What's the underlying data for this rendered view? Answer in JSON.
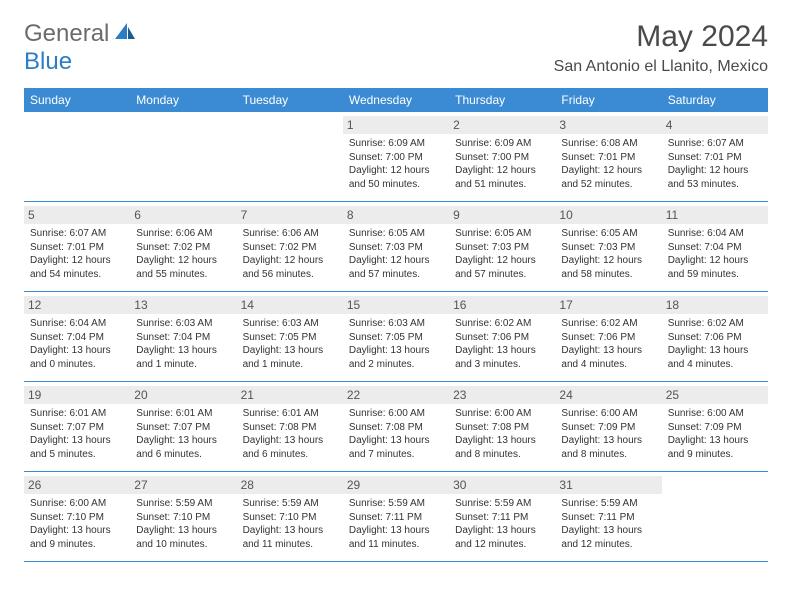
{
  "logo": {
    "text_gray": "General",
    "text_blue": "Blue"
  },
  "header": {
    "month_title": "May 2024",
    "location": "San Antonio el Llanito, Mexico"
  },
  "colors": {
    "header_bg": "#3b8bd4",
    "header_text": "#ffffff",
    "date_bg": "#ececec",
    "border": "#3b8bd4",
    "logo_gray": "#6b6b6b",
    "logo_blue": "#2b7dc4"
  },
  "day_names": [
    "Sunday",
    "Monday",
    "Tuesday",
    "Wednesday",
    "Thursday",
    "Friday",
    "Saturday"
  ],
  "weeks": [
    [
      null,
      null,
      null,
      {
        "n": "1",
        "sr": "Sunrise: 6:09 AM",
        "ss": "Sunset: 7:00 PM",
        "d1": "Daylight: 12 hours",
        "d2": "and 50 minutes."
      },
      {
        "n": "2",
        "sr": "Sunrise: 6:09 AM",
        "ss": "Sunset: 7:00 PM",
        "d1": "Daylight: 12 hours",
        "d2": "and 51 minutes."
      },
      {
        "n": "3",
        "sr": "Sunrise: 6:08 AM",
        "ss": "Sunset: 7:01 PM",
        "d1": "Daylight: 12 hours",
        "d2": "and 52 minutes."
      },
      {
        "n": "4",
        "sr": "Sunrise: 6:07 AM",
        "ss": "Sunset: 7:01 PM",
        "d1": "Daylight: 12 hours",
        "d2": "and 53 minutes."
      }
    ],
    [
      {
        "n": "5",
        "sr": "Sunrise: 6:07 AM",
        "ss": "Sunset: 7:01 PM",
        "d1": "Daylight: 12 hours",
        "d2": "and 54 minutes."
      },
      {
        "n": "6",
        "sr": "Sunrise: 6:06 AM",
        "ss": "Sunset: 7:02 PM",
        "d1": "Daylight: 12 hours",
        "d2": "and 55 minutes."
      },
      {
        "n": "7",
        "sr": "Sunrise: 6:06 AM",
        "ss": "Sunset: 7:02 PM",
        "d1": "Daylight: 12 hours",
        "d2": "and 56 minutes."
      },
      {
        "n": "8",
        "sr": "Sunrise: 6:05 AM",
        "ss": "Sunset: 7:03 PM",
        "d1": "Daylight: 12 hours",
        "d2": "and 57 minutes."
      },
      {
        "n": "9",
        "sr": "Sunrise: 6:05 AM",
        "ss": "Sunset: 7:03 PM",
        "d1": "Daylight: 12 hours",
        "d2": "and 57 minutes."
      },
      {
        "n": "10",
        "sr": "Sunrise: 6:05 AM",
        "ss": "Sunset: 7:03 PM",
        "d1": "Daylight: 12 hours",
        "d2": "and 58 minutes."
      },
      {
        "n": "11",
        "sr": "Sunrise: 6:04 AM",
        "ss": "Sunset: 7:04 PM",
        "d1": "Daylight: 12 hours",
        "d2": "and 59 minutes."
      }
    ],
    [
      {
        "n": "12",
        "sr": "Sunrise: 6:04 AM",
        "ss": "Sunset: 7:04 PM",
        "d1": "Daylight: 13 hours",
        "d2": "and 0 minutes."
      },
      {
        "n": "13",
        "sr": "Sunrise: 6:03 AM",
        "ss": "Sunset: 7:04 PM",
        "d1": "Daylight: 13 hours",
        "d2": "and 1 minute."
      },
      {
        "n": "14",
        "sr": "Sunrise: 6:03 AM",
        "ss": "Sunset: 7:05 PM",
        "d1": "Daylight: 13 hours",
        "d2": "and 1 minute."
      },
      {
        "n": "15",
        "sr": "Sunrise: 6:03 AM",
        "ss": "Sunset: 7:05 PM",
        "d1": "Daylight: 13 hours",
        "d2": "and 2 minutes."
      },
      {
        "n": "16",
        "sr": "Sunrise: 6:02 AM",
        "ss": "Sunset: 7:06 PM",
        "d1": "Daylight: 13 hours",
        "d2": "and 3 minutes."
      },
      {
        "n": "17",
        "sr": "Sunrise: 6:02 AM",
        "ss": "Sunset: 7:06 PM",
        "d1": "Daylight: 13 hours",
        "d2": "and 4 minutes."
      },
      {
        "n": "18",
        "sr": "Sunrise: 6:02 AM",
        "ss": "Sunset: 7:06 PM",
        "d1": "Daylight: 13 hours",
        "d2": "and 4 minutes."
      }
    ],
    [
      {
        "n": "19",
        "sr": "Sunrise: 6:01 AM",
        "ss": "Sunset: 7:07 PM",
        "d1": "Daylight: 13 hours",
        "d2": "and 5 minutes."
      },
      {
        "n": "20",
        "sr": "Sunrise: 6:01 AM",
        "ss": "Sunset: 7:07 PM",
        "d1": "Daylight: 13 hours",
        "d2": "and 6 minutes."
      },
      {
        "n": "21",
        "sr": "Sunrise: 6:01 AM",
        "ss": "Sunset: 7:08 PM",
        "d1": "Daylight: 13 hours",
        "d2": "and 6 minutes."
      },
      {
        "n": "22",
        "sr": "Sunrise: 6:00 AM",
        "ss": "Sunset: 7:08 PM",
        "d1": "Daylight: 13 hours",
        "d2": "and 7 minutes."
      },
      {
        "n": "23",
        "sr": "Sunrise: 6:00 AM",
        "ss": "Sunset: 7:08 PM",
        "d1": "Daylight: 13 hours",
        "d2": "and 8 minutes."
      },
      {
        "n": "24",
        "sr": "Sunrise: 6:00 AM",
        "ss": "Sunset: 7:09 PM",
        "d1": "Daylight: 13 hours",
        "d2": "and 8 minutes."
      },
      {
        "n": "25",
        "sr": "Sunrise: 6:00 AM",
        "ss": "Sunset: 7:09 PM",
        "d1": "Daylight: 13 hours",
        "d2": "and 9 minutes."
      }
    ],
    [
      {
        "n": "26",
        "sr": "Sunrise: 6:00 AM",
        "ss": "Sunset: 7:10 PM",
        "d1": "Daylight: 13 hours",
        "d2": "and 9 minutes."
      },
      {
        "n": "27",
        "sr": "Sunrise: 5:59 AM",
        "ss": "Sunset: 7:10 PM",
        "d1": "Daylight: 13 hours",
        "d2": "and 10 minutes."
      },
      {
        "n": "28",
        "sr": "Sunrise: 5:59 AM",
        "ss": "Sunset: 7:10 PM",
        "d1": "Daylight: 13 hours",
        "d2": "and 11 minutes."
      },
      {
        "n": "29",
        "sr": "Sunrise: 5:59 AM",
        "ss": "Sunset: 7:11 PM",
        "d1": "Daylight: 13 hours",
        "d2": "and 11 minutes."
      },
      {
        "n": "30",
        "sr": "Sunrise: 5:59 AM",
        "ss": "Sunset: 7:11 PM",
        "d1": "Daylight: 13 hours",
        "d2": "and 12 minutes."
      },
      {
        "n": "31",
        "sr": "Sunrise: 5:59 AM",
        "ss": "Sunset: 7:11 PM",
        "d1": "Daylight: 13 hours",
        "d2": "and 12 minutes."
      },
      null
    ]
  ]
}
